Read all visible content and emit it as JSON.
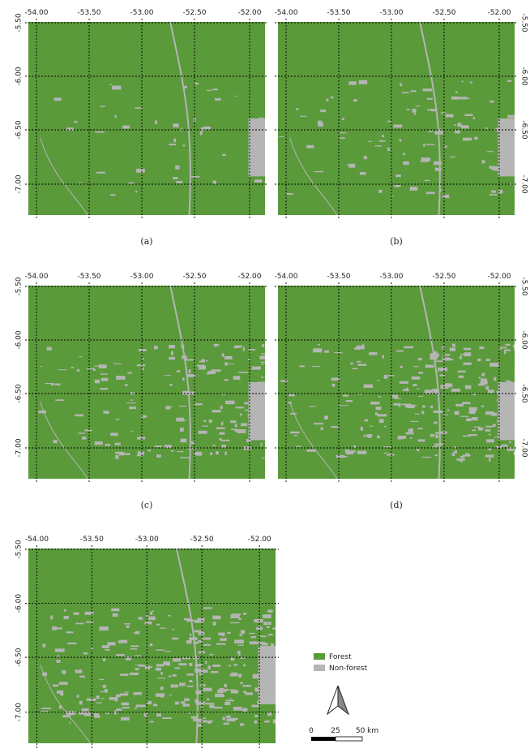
{
  "panels": [
    {
      "caption": "(a)",
      "lon_labels": [
        "-54.00",
        "-53.50",
        "-53.00",
        "-52.50",
        "-52.00"
      ],
      "lat_labels": [
        "-5.50",
        "-6.00",
        "-6.50",
        "-7.00"
      ]
    },
    {
      "caption": "(b)",
      "lon_labels": [
        "-54.00",
        "-53.50",
        "-53.00",
        "-52.50",
        "-52.00"
      ],
      "lat_labels": [
        "-5.50",
        "-6.00",
        "-6.50",
        "-7.00"
      ]
    },
    {
      "caption": "(c)",
      "lon_labels": [
        "-54.00",
        "-53.50",
        "-53.00",
        "-52.50",
        "-52.00"
      ],
      "lat_labels": [
        "-5.50",
        "-6.00",
        "-6.50",
        "-7.00"
      ]
    },
    {
      "caption": "(d)",
      "lon_labels": [
        "-54.00",
        "-53.50",
        "-53.00",
        "-52.50",
        "-52.00"
      ],
      "lat_labels": [
        "-5.50",
        "-6.00",
        "-6.50",
        "-7.00"
      ]
    },
    {
      "lon_labels": [
        "-54.00",
        "-53.50",
        "-53.00",
        "-52.50",
        "-52.00"
      ],
      "lat_labels": [
        "-5.50",
        "-6.00",
        "-6.50",
        "-7.00"
      ]
    }
  ],
  "legend": {
    "items": [
      "Forest",
      "Non-forest"
    ]
  },
  "scale_bar": {
    "labels": [
      "0",
      "25",
      "50 km"
    ]
  }
}
